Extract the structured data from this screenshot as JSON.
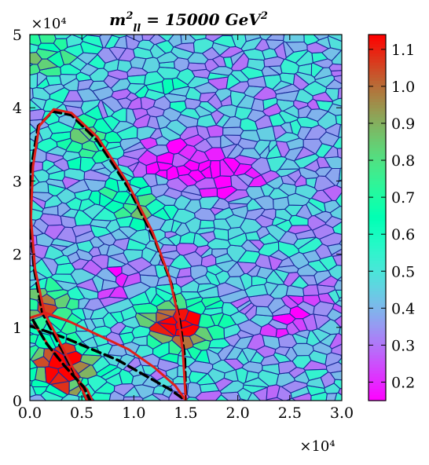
{
  "chart_data": {
    "type": "heatmap",
    "title": "m²ll = 15000 GeV²",
    "title_parts": {
      "base": "m",
      "sup": "2",
      "sub": "ll",
      "middle": " = 15000 ",
      "unit": "GeV",
      "unit_sup": "2"
    },
    "xlabel": "",
    "ylabel": "",
    "xlim": [
      0.0,
      30000
    ],
    "ylim": [
      0,
      50000
    ],
    "x_tick_labels": [
      "0.0",
      "0.5",
      "1.0",
      "1.5",
      "2.0",
      "2.5",
      "3.0"
    ],
    "x_ticks": [
      0,
      5000,
      10000,
      15000,
      20000,
      25000,
      30000
    ],
    "x_multiplier": "×10⁴",
    "y_tick_labels": [
      "0",
      "1",
      "2",
      "3",
      "4",
      "5"
    ],
    "y_ticks": [
      0,
      10000,
      20000,
      30000,
      40000,
      50000
    ],
    "y_multiplier": "×10⁴",
    "colorbar": {
      "range": [
        0.15,
        1.14
      ],
      "tick_labels": [
        "0.2",
        "0.3",
        "0.4",
        "0.5",
        "0.6",
        "0.7",
        "0.8",
        "0.9",
        "1.0",
        "1.1"
      ],
      "ticks": [
        0.2,
        0.3,
        0.4,
        0.5,
        0.6,
        0.7,
        0.8,
        0.9,
        1.0,
        1.1
      ],
      "colormap": "rainbow"
    },
    "cell_mean_value": 0.42,
    "high_value_regions": [
      {
        "x": 1500,
        "y": 12500,
        "value": 0.95
      },
      {
        "x": 14000,
        "y": 11000,
        "value": 0.95
      },
      {
        "x": 15000,
        "y": 9500,
        "value": 0.85
      },
      {
        "x": 9500,
        "y": 26500,
        "value": 0.8
      },
      {
        "x": 6500,
        "y": 36000,
        "value": 0.8
      },
      {
        "x": 1500,
        "y": 47000,
        "value": 0.8
      },
      {
        "x": 3000,
        "y": 5000,
        "value": 0.95
      },
      {
        "x": 3500,
        "y": 4000,
        "value": 0.85
      },
      {
        "x": 11500,
        "y": 42000,
        "value": 0.6
      }
    ],
    "low_value_regions": [
      {
        "x": 17500,
        "y": 32000,
        "value": 0.17
      },
      {
        "x": 13000,
        "y": 33000,
        "value": 0.2
      },
      {
        "x": 19000,
        "y": 30000,
        "value": 0.25
      },
      {
        "x": 10000,
        "y": 40000,
        "value": 0.25
      },
      {
        "x": 8500,
        "y": 17000,
        "value": 0.25
      },
      {
        "x": 25000,
        "y": 11500,
        "value": 0.25
      }
    ],
    "contours": [
      {
        "name": "",
        "color": "#000000",
        "style": "dashed",
        "points": [
          [
            5500,
            0
          ],
          [
            4200,
            4000
          ],
          [
            2500,
            8500
          ],
          [
            1200,
            12000
          ],
          [
            400,
            18000
          ],
          [
            0,
            25000
          ],
          [
            150,
            32000
          ],
          [
            800,
            37500
          ],
          [
            2200,
            39500
          ],
          [
            4000,
            39000
          ],
          [
            6500,
            35500
          ],
          [
            9500,
            29000
          ],
          [
            12000,
            22000
          ],
          [
            13600,
            16000
          ],
          [
            14400,
            11000
          ],
          [
            14900,
            6000
          ],
          [
            15000,
            0
          ]
        ]
      },
      {
        "name": "",
        "color": "#000000",
        "style": "dashed",
        "points": [
          [
            0,
            10200
          ],
          [
            1500,
            9500
          ],
          [
            3500,
            8500
          ],
          [
            6000,
            7000
          ],
          [
            8500,
            5500
          ],
          [
            11000,
            3500
          ],
          [
            13500,
            1500
          ],
          [
            15000,
            0
          ]
        ]
      },
      {
        "name": "",
        "color": "#e0201a",
        "style": "solid",
        "points": [
          [
            5500,
            0
          ],
          [
            4300,
            4000
          ],
          [
            2700,
            8500
          ],
          [
            1400,
            12000
          ],
          [
            500,
            18000
          ],
          [
            100,
            25000
          ],
          [
            300,
            32000
          ],
          [
            900,
            37500
          ],
          [
            2300,
            39800
          ],
          [
            4000,
            39300
          ],
          [
            6500,
            36000
          ],
          [
            9300,
            30000
          ],
          [
            11800,
            23000
          ],
          [
            13400,
            17000
          ],
          [
            14200,
            12000
          ],
          [
            14700,
            7000
          ],
          [
            15000,
            0
          ]
        ]
      },
      {
        "name": "",
        "color": "#e0201a",
        "style": "solid",
        "points": [
          [
            0,
            11300
          ],
          [
            1500,
            12000
          ],
          [
            3800,
            10800
          ],
          [
            6500,
            9000
          ],
          [
            9500,
            7000
          ],
          [
            12000,
            4500
          ],
          [
            14000,
            2000
          ],
          [
            15000,
            0
          ]
        ]
      },
      {
        "name": "",
        "color": "#e0201a",
        "style": "solid",
        "points": [
          [
            400,
            10500
          ],
          [
            1800,
            7500
          ],
          [
            3500,
            4500
          ],
          [
            5500,
            1500
          ],
          [
            6000,
            0
          ]
        ]
      },
      {
        "name": "",
        "color": "#000000",
        "style": "dashed",
        "points": [
          [
            300,
            11000
          ],
          [
            1600,
            7800
          ],
          [
            3300,
            4800
          ],
          [
            5200,
            1800
          ],
          [
            5800,
            0
          ]
        ]
      }
    ]
  }
}
